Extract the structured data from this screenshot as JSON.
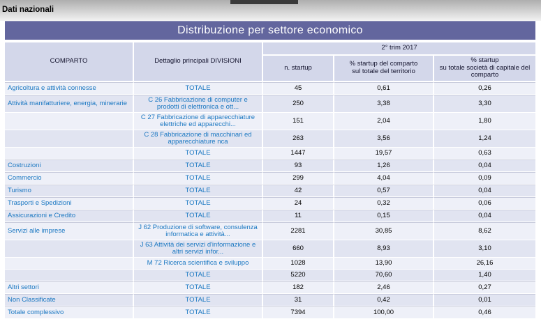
{
  "page": {
    "top_label": "Dati nazionali",
    "title": "Distribuzione per settore economico"
  },
  "colors": {
    "title_bar_bg": "#63669e",
    "header_bg": "#d3d7ea",
    "row_light_bg": "#eef0f8",
    "row_dark_bg": "#e1e4f1",
    "category_text": "#1b78c2",
    "number_text": "#000000",
    "tab_remnant": "#3a3a3a"
  },
  "table": {
    "headers": {
      "comparto": "COMPARTO",
      "dettaglio": "Dettaglio principali DIVISIONI",
      "period": "2° trim 2017",
      "col_n_startup": "n. startup",
      "col_pct_territorio": "% startup del comparto\nsul totale del territorio",
      "col_pct_societa": "% startup\nsu totale società di capitale del\ncomparto"
    },
    "rows": [
      {
        "comparto": "Agricoltura e attività connesse",
        "dettaglio": "TOTALE",
        "n_startup": "45",
        "pct_territorio": "0,61",
        "pct_comparto": "0,26"
      },
      {
        "comparto": "Attività manifatturiere, energia, minerarie",
        "dettaglio": "C 26 Fabbricazione di computer e\nprodotti di elettronica e ott...",
        "n_startup": "250",
        "pct_territorio": "3,38",
        "pct_comparto": "3,30"
      },
      {
        "comparto": "",
        "dettaglio": "C 27 Fabbricazione di apparecchiature\nelettriche ed apparecchi...",
        "n_startup": "151",
        "pct_territorio": "2,04",
        "pct_comparto": "1,80"
      },
      {
        "comparto": "",
        "dettaglio": "C 28 Fabbricazione di macchinari ed\napparecchiature nca",
        "n_startup": "263",
        "pct_territorio": "3,56",
        "pct_comparto": "1,24"
      },
      {
        "comparto": "",
        "dettaglio": "TOTALE",
        "n_startup": "1447",
        "pct_territorio": "19,57",
        "pct_comparto": "0,63"
      },
      {
        "comparto": "Costruzioni",
        "dettaglio": "TOTALE",
        "n_startup": "93",
        "pct_territorio": "1,26",
        "pct_comparto": "0,04"
      },
      {
        "comparto": "Commercio",
        "dettaglio": "TOTALE",
        "n_startup": "299",
        "pct_territorio": "4,04",
        "pct_comparto": "0,09"
      },
      {
        "comparto": "Turismo",
        "dettaglio": "TOTALE",
        "n_startup": "42",
        "pct_territorio": "0,57",
        "pct_comparto": "0,04"
      },
      {
        "comparto": "Trasporti e Spedizioni",
        "dettaglio": "TOTALE",
        "n_startup": "24",
        "pct_territorio": "0,32",
        "pct_comparto": "0,06"
      },
      {
        "comparto": "Assicurazioni e Credito",
        "dettaglio": "TOTALE",
        "n_startup": "11",
        "pct_territorio": "0,15",
        "pct_comparto": "0,04"
      },
      {
        "comparto": "Servizi alle imprese",
        "dettaglio": "J 62 Produzione di software, consulenza\ninformatica e attività...",
        "n_startup": "2281",
        "pct_territorio": "30,85",
        "pct_comparto": "8,62"
      },
      {
        "comparto": "",
        "dettaglio": "J 63 Attività dei servizi d'informazione e\naltri servizi infor...",
        "n_startup": "660",
        "pct_territorio": "8,93",
        "pct_comparto": "3,10"
      },
      {
        "comparto": "",
        "dettaglio": "M 72 Ricerca scientifica e sviluppo",
        "n_startup": "1028",
        "pct_territorio": "13,90",
        "pct_comparto": "26,16"
      },
      {
        "comparto": "",
        "dettaglio": "TOTALE",
        "n_startup": "5220",
        "pct_territorio": "70,60",
        "pct_comparto": "1,40"
      },
      {
        "comparto": "Altri settori",
        "dettaglio": "TOTALE",
        "n_startup": "182",
        "pct_territorio": "2,46",
        "pct_comparto": "0,27"
      },
      {
        "comparto": "Non Classificate",
        "dettaglio": "TOTALE",
        "n_startup": "31",
        "pct_territorio": "0,42",
        "pct_comparto": "0,01"
      },
      {
        "comparto": "Totale complessivo",
        "dettaglio": "TOTALE",
        "n_startup": "7394",
        "pct_territorio": "100,00",
        "pct_comparto": "0,46"
      }
    ]
  }
}
